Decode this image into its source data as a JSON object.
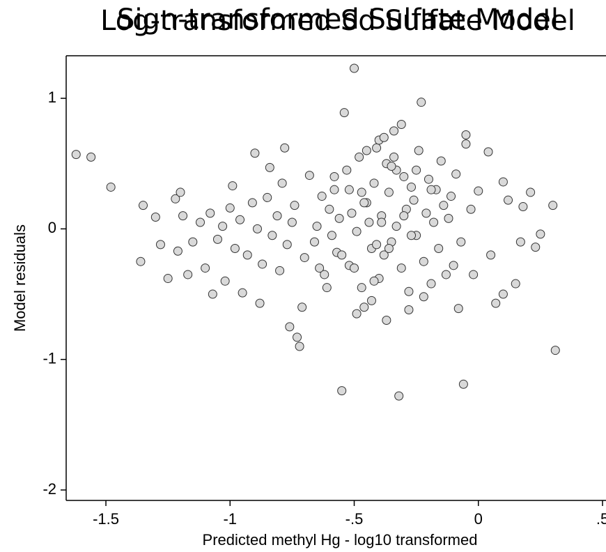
{
  "chart_data": {
    "type": "scatter",
    "titles": [
      "Sign-transformed Sulfate Model",
      "Log-transformed Sd Sulfate Model"
    ],
    "x_label": "Predicted methyl Hg - log10 transformed",
    "y_label": "Model residuals",
    "color": "#d9d9d9",
    "xlim": [
      -1.66,
      0.514
    ],
    "ylim": [
      -2.08,
      1.326
    ],
    "xticks": [
      {
        "value": -1.5,
        "label": "-1.5"
      },
      {
        "value": -1,
        "label": "-1"
      },
      {
        "value": -0.5,
        "label": "-.5"
      },
      {
        "value": 0,
        "label": "0"
      },
      {
        "value": 0.5,
        "label": ".5"
      }
    ],
    "yticks": [
      1,
      0,
      -1,
      -2
    ],
    "x": [
      -1.62,
      -1.56,
      -1.48,
      -1.35,
      -1.36,
      -1.3,
      -1.28,
      -1.25,
      -1.22,
      -1.21,
      -1.2,
      -1.17,
      -1.1,
      -1.07,
      -1.02,
      -0.99,
      -0.95,
      -0.9,
      -0.88,
      -0.84,
      -0.78,
      -0.76,
      -0.73,
      -0.72,
      -0.71,
      -0.5,
      -0.54,
      -0.46,
      -0.55,
      -0.32,
      -0.23,
      -0.06,
      0.31,
      0.3,
      0.25,
      0.23,
      0.21,
      0.18,
      0.17,
      0.15,
      0.1,
      0.1,
      0.12,
      0.07,
      0.05,
      0.04,
      0.0,
      -0.05,
      -0.05,
      -0.08,
      -1.19,
      -1.15,
      -1.12,
      -1.08,
      -1.05,
      -1.03,
      -1.0,
      -0.98,
      -0.96,
      -0.93,
      -0.91,
      -0.89,
      -0.87,
      -0.85,
      -0.83,
      -0.81,
      -0.8,
      -0.79,
      -0.77,
      -0.75,
      -0.74,
      -0.7,
      -0.68,
      -0.66,
      -0.65,
      -0.63,
      -0.62,
      -0.6,
      -0.59,
      -0.58,
      -0.57,
      -0.56,
      -0.53,
      -0.52,
      -0.51,
      -0.49,
      -0.48,
      -0.47,
      -0.45,
      -0.44,
      -0.43,
      -0.42,
      -0.41,
      -0.4,
      -0.39,
      -0.38,
      -0.37,
      -0.36,
      -0.35,
      -0.34,
      -0.33,
      -0.31,
      -0.3,
      -0.29,
      -0.28,
      -0.27,
      -0.26,
      -0.25,
      -0.24,
      -0.22,
      -0.21,
      -0.2,
      -0.19,
      -0.18,
      -0.17,
      -0.16,
      -0.15,
      -0.14,
      -0.13,
      -0.12,
      -0.11,
      -0.1,
      -0.09,
      -0.07,
      -0.03,
      -0.02,
      -0.64,
      -0.61,
      -0.58,
      -0.55,
      -0.52,
      -0.49,
      -0.46,
      -0.43,
      -0.4,
      -0.37,
      -0.34,
      -0.31,
      -0.28,
      -0.25,
      -0.22,
      -0.19,
      -0.45,
      -0.42,
      -0.39,
      -0.36,
      -0.33,
      -0.3,
      -0.27,
      -0.5,
      -0.47,
      -0.41,
      -0.38,
      -0.35
    ],
    "values": [
      0.57,
      0.55,
      0.32,
      0.18,
      -0.25,
      0.09,
      -0.12,
      -0.38,
      0.23,
      -0.17,
      0.28,
      -0.35,
      -0.3,
      -0.5,
      -0.4,
      0.33,
      -0.49,
      0.58,
      -0.57,
      0.47,
      0.62,
      -0.75,
      -0.83,
      -0.9,
      -0.6,
      1.23,
      0.89,
      -0.6,
      -1.24,
      -1.28,
      0.97,
      -1.19,
      -0.93,
      0.18,
      -0.04,
      -0.14,
      0.28,
      0.17,
      -0.1,
      -0.42,
      0.36,
      -0.5,
      0.22,
      -0.57,
      -0.2,
      0.59,
      0.29,
      0.72,
      0.65,
      -0.61,
      0.1,
      -0.1,
      0.05,
      0.12,
      -0.08,
      0.02,
      0.16,
      -0.15,
      0.07,
      -0.2,
      0.2,
      0.0,
      -0.27,
      0.24,
      -0.05,
      0.1,
      -0.32,
      0.35,
      -0.12,
      0.05,
      0.18,
      -0.22,
      0.41,
      -0.1,
      0.02,
      0.25,
      -0.35,
      0.15,
      -0.05,
      0.3,
      -0.18,
      0.08,
      0.45,
      -0.28,
      0.12,
      -0.02,
      0.55,
      -0.45,
      0.2,
      0.05,
      -0.15,
      0.35,
      0.62,
      -0.38,
      0.1,
      -0.2,
      0.5,
      0.28,
      -0.1,
      0.75,
      0.02,
      -0.3,
      0.4,
      0.15,
      -0.48,
      0.32,
      0.22,
      -0.05,
      0.6,
      -0.25,
      0.12,
      0.38,
      -0.42,
      0.05,
      0.3,
      -0.15,
      0.52,
      0.18,
      -0.35,
      0.08,
      0.25,
      -0.28,
      0.42,
      -0.1,
      0.15,
      -0.35,
      -0.3,
      -0.45,
      0.4,
      -0.2,
      0.3,
      -0.65,
      0.2,
      -0.55,
      0.68,
      -0.7,
      0.55,
      0.8,
      -0.62,
      0.45,
      -0.52,
      0.3,
      0.6,
      -0.4,
      0.05,
      -0.15,
      0.45,
      0.1,
      -0.05,
      -0.3,
      0.28,
      -0.12,
      0.7,
      0.48
    ]
  }
}
